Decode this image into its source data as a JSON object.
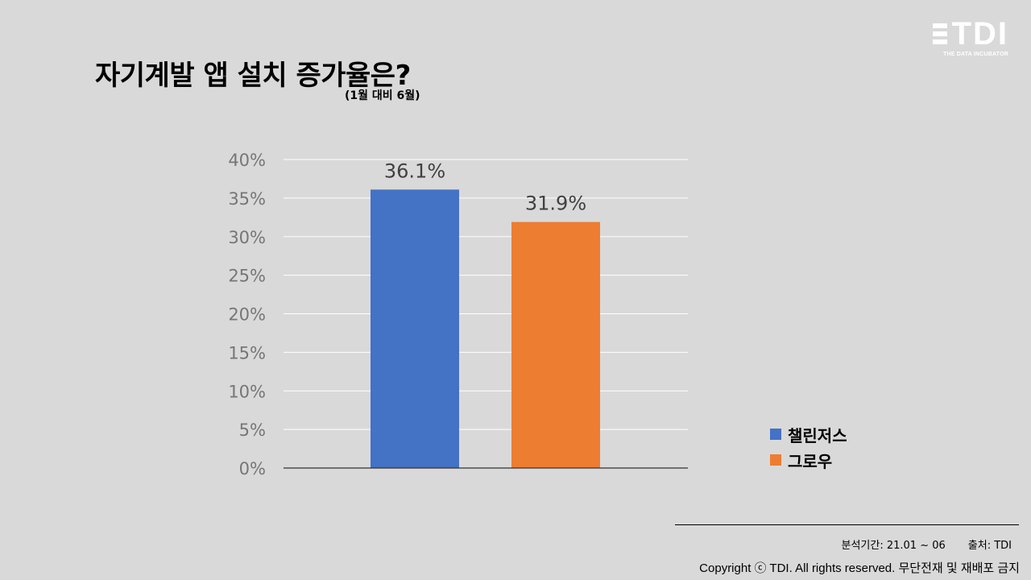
{
  "title": "자기계발 앱 설치 증가율은?",
  "subtitle": "(1월 대비 6월)",
  "logo": {
    "text": "TDI",
    "tagline": "THE DATA INCUBATOR"
  },
  "chart_data": {
    "type": "bar",
    "categories": [
      "챌린저스",
      "그로우"
    ],
    "values": [
      36.1,
      31.9
    ],
    "value_labels": [
      "36.1%",
      "31.9%"
    ],
    "colors": [
      "#4472c4",
      "#ed7d31"
    ],
    "yticks": [
      "0%",
      "5%",
      "10%",
      "15%",
      "20%",
      "25%",
      "30%",
      "35%",
      "40%"
    ],
    "ylim": [
      0,
      40
    ],
    "ystep": 5,
    "grid": true,
    "legend_position": "right"
  },
  "legend": [
    {
      "label": "챌린저스",
      "color": "#4472c4"
    },
    {
      "label": "그로우",
      "color": "#ed7d31"
    }
  ],
  "footer": {
    "period": "분석기간: 21.01 ~ 06",
    "source": "출처: TDI",
    "copyright": "Copyright ⓒ TDI. All rights reserved. 무단전재 및 재배포 금지"
  }
}
